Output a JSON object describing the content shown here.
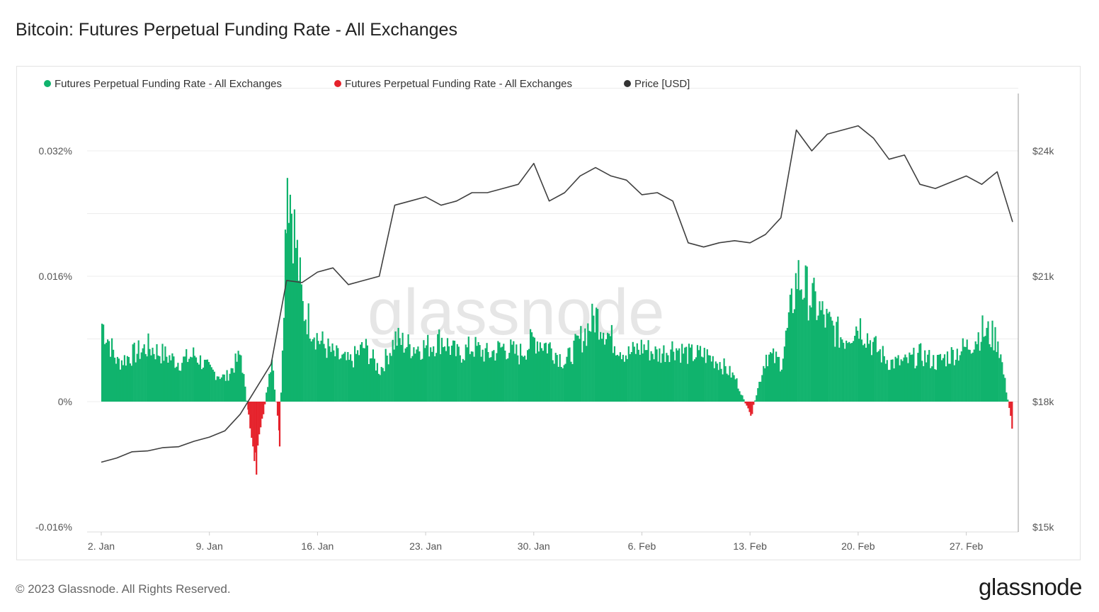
{
  "title": "Bitcoin: Futures Perpetual Funding Rate - All Exchanges",
  "footer": {
    "copyright": "© 2023 Glassnode. All Rights Reserved.",
    "logo": "glassnode"
  },
  "watermark": "glassnode",
  "colors": {
    "positive": "#10b36d",
    "negative": "#e5212a",
    "price": "#404040",
    "grid": "#ececec"
  },
  "chart_data": {
    "type": "bar",
    "legend": [
      {
        "label": "Futures Perpetual Funding Rate - All Exchanges",
        "color": "#10b36d"
      },
      {
        "label": "Futures Perpetual Funding Rate - All Exchanges",
        "color": "#e5212a"
      },
      {
        "label": "Price [USD]",
        "color": "#333333"
      }
    ],
    "legend_position": "top-left",
    "grid": true,
    "x_range": [
      "2023-01-02",
      "2023-03-02"
    ],
    "x_ticks": [
      {
        "date": "2023-01-02",
        "label": "2. Jan"
      },
      {
        "date": "2023-01-09",
        "label": "9. Jan"
      },
      {
        "date": "2023-01-16",
        "label": "16. Jan"
      },
      {
        "date": "2023-01-23",
        "label": "23. Jan"
      },
      {
        "date": "2023-01-30",
        "label": "30. Jan"
      },
      {
        "date": "2023-02-06",
        "label": "6. Feb"
      },
      {
        "date": "2023-02-13",
        "label": "13. Feb"
      },
      {
        "date": "2023-02-20",
        "label": "20. Feb"
      },
      {
        "date": "2023-02-27",
        "label": "27. Feb"
      }
    ],
    "y_left": {
      "ylim": [
        -0.016,
        0.032
      ],
      "unit": "%",
      "ticks": [
        {
          "value": 0.032,
          "label": "0.032%"
        },
        {
          "value": 0.016,
          "label": "0.016%"
        },
        {
          "value": 0,
          "label": "0%"
        },
        {
          "value": -0.016,
          "label": "-0.016%"
        }
      ]
    },
    "y_right": {
      "ylim": [
        15000,
        24000
      ],
      "ticks": [
        {
          "value": 24000,
          "label": "$24k"
        },
        {
          "value": 21000,
          "label": "$21k"
        },
        {
          "value": 18000,
          "label": "$18k"
        },
        {
          "value": 15000,
          "label": "$15k"
        }
      ]
    },
    "funding_rate": {
      "unit": "%",
      "points": [
        [
          "2023-01-02",
          0.01
        ],
        [
          "2023-01-03",
          0.005
        ],
        [
          "2023-01-04",
          0.006
        ],
        [
          "2023-01-05",
          0.007
        ],
        [
          "2023-01-06",
          0.006
        ],
        [
          "2023-01-07",
          0.005
        ],
        [
          "2023-01-08",
          0.006
        ],
        [
          "2023-01-09",
          0.004
        ],
        [
          "2023-01-10",
          0.003
        ],
        [
          "2023-01-11",
          0.006
        ],
        [
          "2023-01-11.5",
          -0.002
        ],
        [
          "2023-01-12",
          -0.008
        ],
        [
          "2023-01-13",
          0.006
        ],
        [
          "2023-01-13.5",
          -0.005
        ],
        [
          "2023-01-14",
          0.03
        ],
        [
          "2023-01-15",
          0.012
        ],
        [
          "2023-01-16",
          0.008
        ],
        [
          "2023-01-17",
          0.006
        ],
        [
          "2023-01-18",
          0.005
        ],
        [
          "2023-01-19",
          0.007
        ],
        [
          "2023-01-20",
          0.004
        ],
        [
          "2023-01-21",
          0.008
        ],
        [
          "2023-01-22",
          0.007
        ],
        [
          "2023-01-23",
          0.007
        ],
        [
          "2023-01-24",
          0.008
        ],
        [
          "2023-01-25",
          0.006
        ],
        [
          "2023-01-26",
          0.007
        ],
        [
          "2023-01-27",
          0.006
        ],
        [
          "2023-01-28",
          0.007
        ],
        [
          "2023-01-29",
          0.006
        ],
        [
          "2023-01-30",
          0.008
        ],
        [
          "2023-01-31",
          0.007
        ],
        [
          "2023-02-01",
          0.005
        ],
        [
          "2023-02-02",
          0.008
        ],
        [
          "2023-02-03",
          0.011
        ],
        [
          "2023-02-04",
          0.008
        ],
        [
          "2023-02-05",
          0.006
        ],
        [
          "2023-02-06",
          0.007
        ],
        [
          "2023-02-07",
          0.006
        ],
        [
          "2023-02-08",
          0.007
        ],
        [
          "2023-02-09",
          0.006
        ],
        [
          "2023-02-10",
          0.006
        ],
        [
          "2023-02-11",
          0.005
        ],
        [
          "2023-02-12",
          0.003
        ],
        [
          "2023-02-13",
          -0.002
        ],
        [
          "2023-02-14",
          0.006
        ],
        [
          "2023-02-15",
          0.005
        ],
        [
          "2023-02-16",
          0.016
        ],
        [
          "2023-02-17",
          0.013
        ],
        [
          "2023-02-18",
          0.01
        ],
        [
          "2023-02-19",
          0.008
        ],
        [
          "2023-02-20",
          0.01
        ],
        [
          "2023-02-21",
          0.007
        ],
        [
          "2023-02-22",
          0.005
        ],
        [
          "2023-02-23",
          0.005
        ],
        [
          "2023-02-24",
          0.006
        ],
        [
          "2023-02-25",
          0.005
        ],
        [
          "2023-02-26",
          0.006
        ],
        [
          "2023-02-27",
          0.007
        ],
        [
          "2023-02-28",
          0.009
        ],
        [
          "2023-03-01",
          0.008
        ],
        [
          "2023-03-02",
          -0.004
        ]
      ]
    },
    "price_usd": {
      "points": [
        [
          "2023-01-02",
          16550
        ],
        [
          "2023-01-03",
          16650
        ],
        [
          "2023-01-04",
          16800
        ],
        [
          "2023-01-05",
          16820
        ],
        [
          "2023-01-06",
          16900
        ],
        [
          "2023-01-07",
          16920
        ],
        [
          "2023-01-08",
          17050
        ],
        [
          "2023-01-09",
          17150
        ],
        [
          "2023-01-10",
          17300
        ],
        [
          "2023-01-11",
          17700
        ],
        [
          "2023-01-12",
          18300
        ],
        [
          "2023-01-13",
          18900
        ],
        [
          "2023-01-14",
          20900
        ],
        [
          "2023-01-15",
          20850
        ],
        [
          "2023-01-16",
          21100
        ],
        [
          "2023-01-17",
          21200
        ],
        [
          "2023-01-18",
          20800
        ],
        [
          "2023-01-19",
          20900
        ],
        [
          "2023-01-20",
          21000
        ],
        [
          "2023-01-21",
          22700
        ],
        [
          "2023-01-22",
          22800
        ],
        [
          "2023-01-23",
          22900
        ],
        [
          "2023-01-24",
          22700
        ],
        [
          "2023-01-25",
          22800
        ],
        [
          "2023-01-26",
          23000
        ],
        [
          "2023-01-27",
          23000
        ],
        [
          "2023-01-28",
          23100
        ],
        [
          "2023-01-29",
          23200
        ],
        [
          "2023-01-30",
          23700
        ],
        [
          "2023-01-31",
          22800
        ],
        [
          "2023-02-01",
          23000
        ],
        [
          "2023-02-02",
          23400
        ],
        [
          "2023-02-03",
          23600
        ],
        [
          "2023-02-04",
          23400
        ],
        [
          "2023-02-05",
          23300
        ],
        [
          "2023-02-06",
          22950
        ],
        [
          "2023-02-07",
          23000
        ],
        [
          "2023-02-08",
          22800
        ],
        [
          "2023-02-09",
          21800
        ],
        [
          "2023-02-10",
          21700
        ],
        [
          "2023-02-11",
          21800
        ],
        [
          "2023-02-12",
          21850
        ],
        [
          "2023-02-13",
          21800
        ],
        [
          "2023-02-14",
          22000
        ],
        [
          "2023-02-15",
          22400
        ],
        [
          "2023-02-16",
          24500
        ],
        [
          "2023-02-17",
          24000
        ],
        [
          "2023-02-18",
          24400
        ],
        [
          "2023-02-19",
          24500
        ],
        [
          "2023-02-20",
          24600
        ],
        [
          "2023-02-21",
          24300
        ],
        [
          "2023-02-22",
          23800
        ],
        [
          "2023-02-23",
          23900
        ],
        [
          "2023-02-24",
          23200
        ],
        [
          "2023-02-25",
          23100
        ],
        [
          "2023-02-26",
          23250
        ],
        [
          "2023-02-27",
          23400
        ],
        [
          "2023-02-28",
          23200
        ],
        [
          "2023-03-01",
          23500
        ],
        [
          "2023-03-02",
          22300
        ]
      ]
    }
  }
}
